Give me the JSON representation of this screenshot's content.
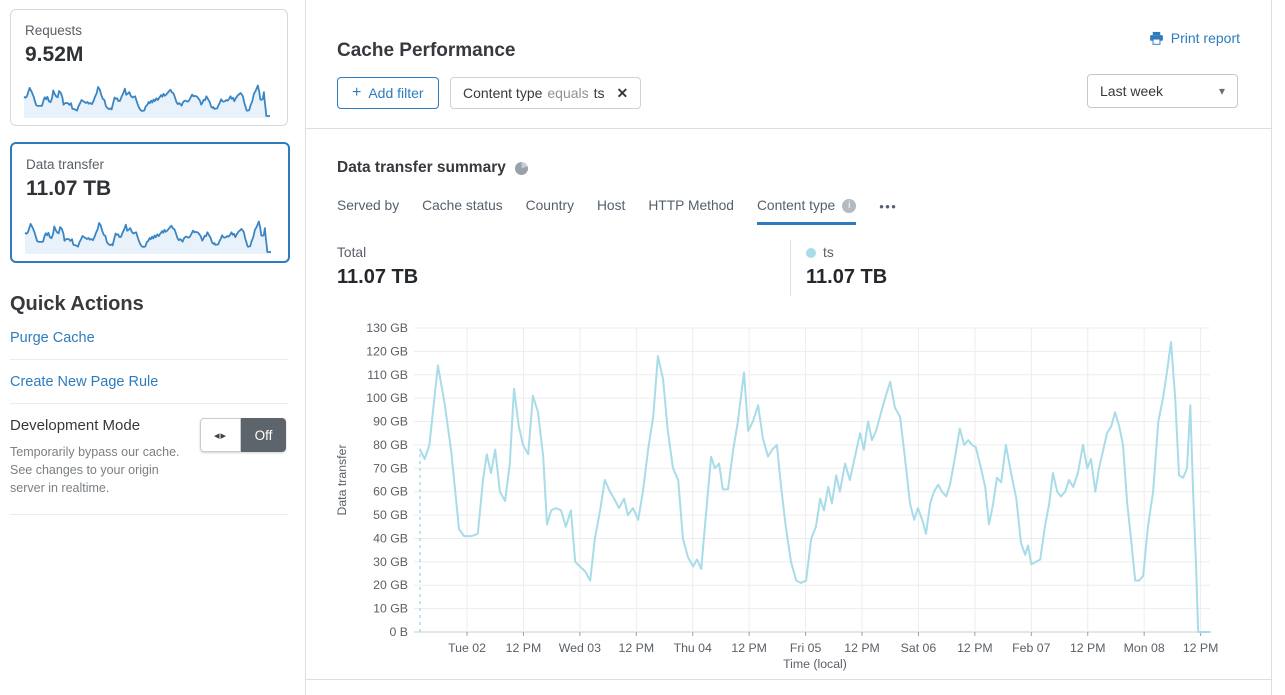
{
  "colors": {
    "accent": "#2e7cbe",
    "tab_underline": "#2f7bbf",
    "chart_line": "#a8dce8",
    "spark_line": "#3a86c4",
    "spark_fill": "#e9f2fa",
    "toggle_off_bg": "#5d646c"
  },
  "icons": {
    "toggle_arrows": "◂▸",
    "chip_close": "✕",
    "add_plus": "+",
    "dropdown_caret": "▾",
    "info_i": "i",
    "tab_overflow": "•••"
  },
  "sidebar": {
    "cards": [
      {
        "label": "Requests",
        "value": "9.52M"
      },
      {
        "label": "Data transfer",
        "value": "11.07 TB"
      }
    ],
    "quick_actions": {
      "title": "Quick Actions",
      "links": [
        "Purge Cache",
        "Create New Page Rule"
      ],
      "dev_mode": {
        "title": "Development Mode",
        "description": "Temporarily bypass our cache. See changes to your origin server in realtime.",
        "toggle_state": "Off"
      }
    }
  },
  "header": {
    "title": "Cache Performance",
    "print_label": "Print report",
    "add_filter_label": "Add filter",
    "filter_chip": {
      "field": "Content type",
      "operator": "equals",
      "value": "ts"
    },
    "time_range": "Last week"
  },
  "summary": {
    "title": "Data transfer summary",
    "tabs": [
      {
        "label": "Served by"
      },
      {
        "label": "Cache status"
      },
      {
        "label": "Country"
      },
      {
        "label": "Host"
      },
      {
        "label": "HTTP Method"
      },
      {
        "label": "Content type",
        "active": true
      }
    ],
    "total_label": "Total",
    "total_value": "11.07 TB",
    "series_label": "ts",
    "series_value": "11.07 TB"
  },
  "chart_data": {
    "type": "line",
    "title": "Data transfer summary — ts",
    "xlabel": "Time (local)",
    "ylabel": "Data transfer",
    "unit": "GB",
    "ylim": [
      0,
      130
    ],
    "y_tick_labels": [
      "0 B",
      "10 GB",
      "20 GB",
      "30 GB",
      "40 GB",
      "50 GB",
      "60 GB",
      "70 GB",
      "80 GB",
      "90 GB",
      "100 GB",
      "110 GB",
      "120 GB",
      "130 GB"
    ],
    "x_tick_labels": [
      "Tue 02",
      "12 PM",
      "Wed 03",
      "12 PM",
      "Thu 04",
      "12 PM",
      "Fri 05",
      "12 PM",
      "Sat 06",
      "12 PM",
      "Feb 07",
      "12 PM",
      "Mon 08",
      "12 PM"
    ],
    "x_first_tick_hour": 10,
    "x_tick_interval_hours": 12,
    "x_total_hours": 168,
    "grid": true,
    "legend_position": "top-right",
    "points": [
      [
        0,
        78
      ],
      [
        1,
        74
      ],
      [
        2,
        80
      ],
      [
        3.8,
        114
      ],
      [
        5.3,
        97
      ],
      [
        6.6,
        78
      ],
      [
        7.4,
        62
      ],
      [
        8.3,
        44
      ],
      [
        9.4,
        41
      ],
      [
        11,
        41
      ],
      [
        12.3,
        42
      ],
      [
        13.4,
        65
      ],
      [
        14.2,
        76
      ],
      [
        15.1,
        68
      ],
      [
        16,
        78
      ],
      [
        17,
        60
      ],
      [
        18.1,
        56
      ],
      [
        19.1,
        72
      ],
      [
        20,
        104
      ],
      [
        21,
        88
      ],
      [
        21.9,
        80
      ],
      [
        23,
        76
      ],
      [
        24,
        101
      ],
      [
        25.1,
        94
      ],
      [
        26.2,
        75
      ],
      [
        27,
        46
      ],
      [
        27.9,
        52
      ],
      [
        28.9,
        53
      ],
      [
        30,
        52
      ],
      [
        31,
        45
      ],
      [
        32.1,
        52
      ],
      [
        33,
        30
      ],
      [
        34,
        28
      ],
      [
        35.1,
        26
      ],
      [
        36.2,
        22
      ],
      [
        37.2,
        40
      ],
      [
        38.3,
        52
      ],
      [
        39.3,
        65
      ],
      [
        40.4,
        60
      ],
      [
        41.3,
        57
      ],
      [
        42.3,
        53
      ],
      [
        43.4,
        57
      ],
      [
        44.2,
        50
      ],
      [
        45.3,
        53
      ],
      [
        46.4,
        48
      ],
      [
        47.4,
        60
      ],
      [
        48.5,
        78
      ],
      [
        49.6,
        92
      ],
      [
        50.6,
        118
      ],
      [
        51.7,
        108
      ],
      [
        52.7,
        86
      ],
      [
        53.8,
        70
      ],
      [
        54.9,
        65
      ],
      [
        55.9,
        40
      ],
      [
        57,
        32
      ],
      [
        58.1,
        28
      ],
      [
        58.9,
        31
      ],
      [
        59.8,
        27
      ],
      [
        60.8,
        50
      ],
      [
        61.9,
        75
      ],
      [
        62.7,
        70
      ],
      [
        63.6,
        72
      ],
      [
        64.4,
        61
      ],
      [
        65.5,
        61
      ],
      [
        66.6,
        78
      ],
      [
        67.6,
        90
      ],
      [
        68.9,
        111
      ],
      [
        69.8,
        86
      ],
      [
        70.8,
        90
      ],
      [
        71.9,
        97
      ],
      [
        72.9,
        83
      ],
      [
        74,
        75
      ],
      [
        74.9,
        78
      ],
      [
        75.9,
        80
      ],
      [
        76.8,
        62
      ],
      [
        77.8,
        45
      ],
      [
        78.9,
        30
      ],
      [
        80,
        22
      ],
      [
        81,
        21
      ],
      [
        82.1,
        22
      ],
      [
        83.2,
        40
      ],
      [
        84.2,
        45
      ],
      [
        85.1,
        57
      ],
      [
        85.9,
        52
      ],
      [
        86.8,
        62
      ],
      [
        87.6,
        55
      ],
      [
        88.5,
        67
      ],
      [
        89.3,
        60
      ],
      [
        90.4,
        72
      ],
      [
        91.4,
        65
      ],
      [
        92.5,
        75
      ],
      [
        93.6,
        85
      ],
      [
        94.4,
        78
      ],
      [
        95.3,
        90
      ],
      [
        96.1,
        82
      ],
      [
        97,
        86
      ],
      [
        97.8,
        92
      ],
      [
        98.9,
        100
      ],
      [
        100,
        107
      ],
      [
        101,
        96
      ],
      [
        102.1,
        92
      ],
      [
        103.1,
        75
      ],
      [
        104.2,
        55
      ],
      [
        105.1,
        48
      ],
      [
        105.9,
        53
      ],
      [
        106.8,
        48
      ],
      [
        107.6,
        42
      ],
      [
        108.5,
        55
      ],
      [
        109.3,
        60
      ],
      [
        110.2,
        63
      ],
      [
        111,
        60
      ],
      [
        111.9,
        58
      ],
      [
        112.7,
        63
      ],
      [
        113.8,
        75
      ],
      [
        114.8,
        87
      ],
      [
        115.7,
        80
      ],
      [
        116.6,
        82
      ],
      [
        117.4,
        80
      ],
      [
        118.2,
        79
      ],
      [
        119.3,
        70
      ],
      [
        120.2,
        62
      ],
      [
        121,
        46
      ],
      [
        121.9,
        55
      ],
      [
        122.7,
        66
      ],
      [
        123.6,
        64
      ],
      [
        124.6,
        80
      ],
      [
        125.7,
        68
      ],
      [
        126.8,
        57
      ],
      [
        127.8,
        38
      ],
      [
        128.7,
        33
      ],
      [
        129.3,
        37
      ],
      [
        130,
        29
      ],
      [
        131,
        30
      ],
      [
        131.9,
        31
      ],
      [
        132.9,
        45
      ],
      [
        133.8,
        55
      ],
      [
        134.6,
        68
      ],
      [
        135.5,
        60
      ],
      [
        136.3,
        58
      ],
      [
        137.2,
        60
      ],
      [
        138,
        65
      ],
      [
        138.9,
        62
      ],
      [
        139.9,
        68
      ],
      [
        141,
        80
      ],
      [
        141.9,
        70
      ],
      [
        142.7,
        74
      ],
      [
        143.6,
        60
      ],
      [
        144.4,
        70
      ],
      [
        145.3,
        78
      ],
      [
        146.1,
        85
      ],
      [
        147,
        88
      ],
      [
        147.8,
        94
      ],
      [
        148.7,
        88
      ],
      [
        149.5,
        80
      ],
      [
        150.4,
        55
      ],
      [
        151.2,
        40
      ],
      [
        152.1,
        22
      ],
      [
        152.9,
        22
      ],
      [
        153.8,
        24
      ],
      [
        154.8,
        45
      ],
      [
        155.9,
        60
      ],
      [
        157,
        90
      ],
      [
        158,
        100
      ],
      [
        158.9,
        112
      ],
      [
        159.7,
        124
      ],
      [
        160.6,
        100
      ],
      [
        161.4,
        67
      ],
      [
        162.3,
        66
      ],
      [
        163.1,
        70
      ],
      [
        163.8,
        97
      ],
      [
        164.4,
        60
      ],
      [
        165,
        30
      ],
      [
        165.5,
        0
      ],
      [
        168,
        0
      ]
    ]
  }
}
